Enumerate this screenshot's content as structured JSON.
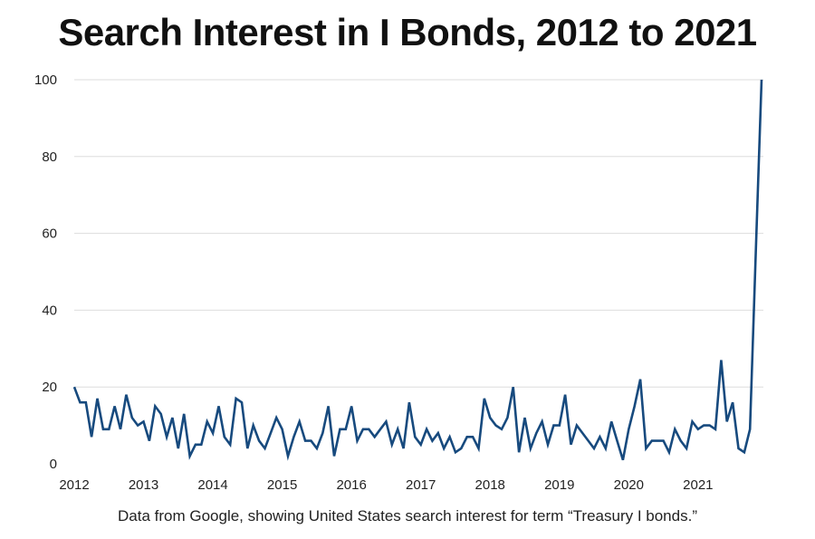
{
  "header": {
    "title": "Search Interest in I Bonds, 2012 to 2021"
  },
  "footer": {
    "caption": "Data from Google, showing United States search interest for term “Treasury I bonds.”"
  },
  "colors": {
    "line": "#174a7e",
    "grid": "#dddddd"
  },
  "chart_data": {
    "type": "line",
    "title": "Search Interest in I Bonds, 2012 to 2021",
    "xlabel": "",
    "ylabel": "",
    "x_ticks": [
      "2012",
      "2013",
      "2014",
      "2015",
      "2016",
      "2017",
      "2018",
      "2019",
      "2020",
      "2021"
    ],
    "y_ticks": [
      0,
      20,
      40,
      60,
      80,
      100
    ],
    "ylim": [
      0,
      100
    ],
    "xlim": [
      "2012-01",
      "2021-12"
    ],
    "grid": "horizontal",
    "legend": "none",
    "series": [
      {
        "x": [
          "2012-01",
          "2012-02",
          "2012-03",
          "2012-04",
          "2012-05",
          "2012-06",
          "2012-07",
          "2012-08",
          "2012-09",
          "2012-10",
          "2012-11",
          "2012-12",
          "2013-01",
          "2013-02",
          "2013-03",
          "2013-04",
          "2013-05",
          "2013-06",
          "2013-07",
          "2013-08",
          "2013-09",
          "2013-10",
          "2013-11",
          "2013-12",
          "2014-01",
          "2014-02",
          "2014-03",
          "2014-04",
          "2014-05",
          "2014-06",
          "2014-07",
          "2014-08",
          "2014-09",
          "2014-10",
          "2014-11",
          "2014-12",
          "2015-01",
          "2015-02",
          "2015-03",
          "2015-04",
          "2015-05",
          "2015-06",
          "2015-07",
          "2015-08",
          "2015-09",
          "2015-10",
          "2015-11",
          "2015-12",
          "2016-01",
          "2016-02",
          "2016-03",
          "2016-04",
          "2016-05",
          "2016-06",
          "2016-07",
          "2016-08",
          "2016-09",
          "2016-10",
          "2016-11",
          "2016-12",
          "2017-01",
          "2017-02",
          "2017-03",
          "2017-04",
          "2017-05",
          "2017-06",
          "2017-07",
          "2017-08",
          "2017-09",
          "2017-10",
          "2017-11",
          "2017-12",
          "2018-01",
          "2018-02",
          "2018-03",
          "2018-04",
          "2018-05",
          "2018-06",
          "2018-07",
          "2018-08",
          "2018-09",
          "2018-10",
          "2018-11",
          "2018-12",
          "2019-01",
          "2019-02",
          "2019-03",
          "2019-04",
          "2019-05",
          "2019-06",
          "2019-07",
          "2019-08",
          "2019-09",
          "2019-10",
          "2019-11",
          "2019-12",
          "2020-01",
          "2020-02",
          "2020-03",
          "2020-04",
          "2020-05",
          "2020-06",
          "2020-07",
          "2020-08",
          "2020-09",
          "2020-10",
          "2020-11",
          "2020-12",
          "2021-01",
          "2021-02",
          "2021-03",
          "2021-04",
          "2021-05",
          "2021-06",
          "2021-07",
          "2021-08",
          "2021-09",
          "2021-10",
          "2021-11",
          "2021-12"
        ],
        "values": [
          20,
          16,
          16,
          7,
          17,
          9,
          9,
          15,
          9,
          18,
          12,
          10,
          11,
          6,
          15,
          13,
          7,
          12,
          4,
          13,
          2,
          5,
          5,
          11,
          8,
          15,
          7,
          5,
          17,
          16,
          4,
          10,
          6,
          4,
          8,
          12,
          9,
          2,
          7,
          11,
          6,
          6,
          4,
          8,
          15,
          2,
          9,
          9,
          15,
          6,
          9,
          9,
          7,
          9,
          11,
          5,
          9,
          4,
          16,
          7,
          5,
          9,
          6,
          8,
          4,
          7,
          3,
          4,
          7,
          7,
          4,
          17,
          12,
          10,
          9,
          12,
          20,
          3,
          12,
          4,
          8,
          11,
          5,
          10,
          10,
          18,
          5,
          10,
          8,
          6,
          4,
          7,
          4,
          11,
          6,
          1,
          9,
          15,
          22,
          4,
          6,
          6,
          6,
          3,
          9,
          6,
          4,
          11,
          9,
          10,
          10,
          9,
          27,
          11,
          16,
          4,
          3,
          9,
          55,
          100
        ]
      }
    ]
  }
}
